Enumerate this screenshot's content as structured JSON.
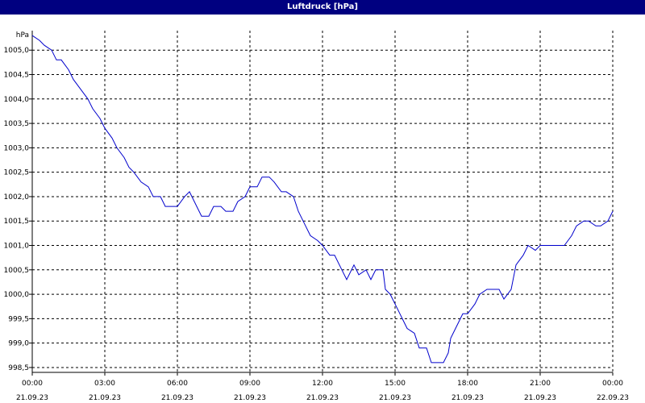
{
  "window": {
    "title": "Luftdruck [hPa]"
  },
  "colors": {
    "titlebar": "#000080",
    "line": "#0000cc",
    "grid": "#000000",
    "background": "#ffffff"
  },
  "chart_data": {
    "type": "line",
    "title": "Luftdruck [hPa]",
    "ylabel": "hPa",
    "ylim": [
      998.4,
      1005.4
    ],
    "xlim": [
      0,
      24
    ],
    "grid": true,
    "y_ticks": [
      "998,5",
      "999,0",
      "999,5",
      "1000,0",
      "1000,5",
      "1001,0",
      "1001,5",
      "1002,0",
      "1002,5",
      "1003,0",
      "1003,5",
      "1004,0",
      "1004,5",
      "1005,0"
    ],
    "y_tick_values": [
      998.5,
      999.0,
      999.5,
      1000.0,
      1000.5,
      1001.0,
      1001.5,
      1002.0,
      1002.5,
      1003.0,
      1003.5,
      1004.0,
      1004.5,
      1005.0
    ],
    "x_ticks": [
      {
        "time": "00:00",
        "date": "21.09.23"
      },
      {
        "time": "03:00",
        "date": "21.09.23"
      },
      {
        "time": "06:00",
        "date": "21.09.23"
      },
      {
        "time": "09:00",
        "date": "21.09.23"
      },
      {
        "time": "12:00",
        "date": "21.09.23"
      },
      {
        "time": "15:00",
        "date": "21.09.23"
      },
      {
        "time": "18:00",
        "date": "21.09.23"
      },
      {
        "time": "21:00",
        "date": "21.09.23"
      },
      {
        "time": "00:00",
        "date": "22.09.23"
      }
    ],
    "x_tick_hours": [
      0,
      3,
      6,
      9,
      12,
      15,
      18,
      21,
      24
    ],
    "series": [
      {
        "x": [
          0,
          0.3,
          0.5,
          0.8,
          1.0,
          1.2,
          1.5,
          1.7,
          2.0,
          2.3,
          2.5,
          2.8,
          3.0,
          3.3,
          3.5,
          3.8,
          4.0,
          4.2,
          4.5,
          4.8,
          5.0,
          5.3,
          5.5,
          5.8,
          6.0,
          6.3,
          6.5,
          6.8,
          7.0,
          7.3,
          7.5,
          7.8,
          8.0,
          8.3,
          8.5,
          8.8,
          9.0,
          9.3,
          9.5,
          9.8,
          10.0,
          10.3,
          10.5,
          10.8,
          11.0,
          11.3,
          11.5,
          11.8,
          12.0,
          12.3,
          12.5,
          12.8,
          13.0,
          13.3,
          13.5,
          13.8,
          14.0,
          14.2,
          14.3,
          14.5,
          14.6,
          14.8,
          15.0,
          15.2,
          15.3,
          15.5,
          15.8,
          16.0,
          16.3,
          16.5,
          16.8,
          17.0,
          17.2,
          17.3,
          17.5,
          17.8,
          18.0,
          18.3,
          18.5,
          18.8,
          19.0,
          19.3,
          19.5,
          19.8,
          20.0,
          20.3,
          20.5,
          20.8,
          21.0,
          21.3,
          21.5,
          21.8,
          22.0,
          22.3,
          22.5,
          22.8,
          23.0,
          23.3,
          23.5,
          23.8,
          24.0
        ],
        "values": [
          1005.3,
          1005.2,
          1005.1,
          1005.0,
          1004.8,
          1004.8,
          1004.6,
          1004.4,
          1004.2,
          1004.0,
          1003.8,
          1003.6,
          1003.4,
          1003.2,
          1003.0,
          1002.8,
          1002.6,
          1002.5,
          1002.3,
          1002.2,
          1002.0,
          1002.0,
          1001.8,
          1001.8,
          1001.8,
          1002.0,
          1002.1,
          1001.8,
          1001.6,
          1001.6,
          1001.8,
          1001.8,
          1001.7,
          1001.7,
          1001.9,
          1002.0,
          1002.2,
          1002.2,
          1002.4,
          1002.4,
          1002.3,
          1002.1,
          1002.1,
          1002.0,
          1001.7,
          1001.4,
          1001.2,
          1001.1,
          1001.0,
          1000.8,
          1000.8,
          1000.5,
          1000.3,
          1000.6,
          1000.4,
          1000.5,
          1000.3,
          1000.5,
          1000.5,
          1000.5,
          1000.1,
          1000.0,
          999.8,
          999.6,
          999.5,
          999.3,
          999.2,
          998.9,
          998.9,
          998.6,
          998.6,
          998.6,
          998.8,
          999.1,
          999.3,
          999.6,
          999.6,
          999.8,
          1000.0,
          1000.1,
          1000.1,
          1000.1,
          999.9,
          1000.1,
          1000.6,
          1000.8,
          1001.0,
          1000.9,
          1001.0,
          1001.0,
          1001.0,
          1001.0,
          1001.0,
          1001.2,
          1001.4,
          1001.5,
          1001.5,
          1001.4,
          1001.4,
          1001.5,
          1001.7
        ]
      }
    ]
  }
}
